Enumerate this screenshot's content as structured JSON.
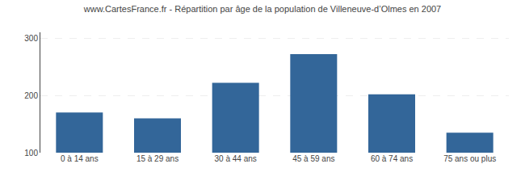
{
  "chart_data": {
    "type": "bar",
    "title": "www.CartesFrance.fr - Répartition par âge de la population de Villeneuve-d’Olmes en 2007",
    "categories": [
      "0 à 14 ans",
      "15 à 29 ans",
      "30 à 44 ans",
      "45 à 59 ans",
      "60 à 74 ans",
      "75 ans ou plus"
    ],
    "values": [
      170,
      160,
      222,
      272,
      202,
      135
    ],
    "color": "#336699",
    "ylim": [
      100,
      310
    ],
    "yticks": [
      100,
      200,
      300
    ],
    "grid": true
  }
}
